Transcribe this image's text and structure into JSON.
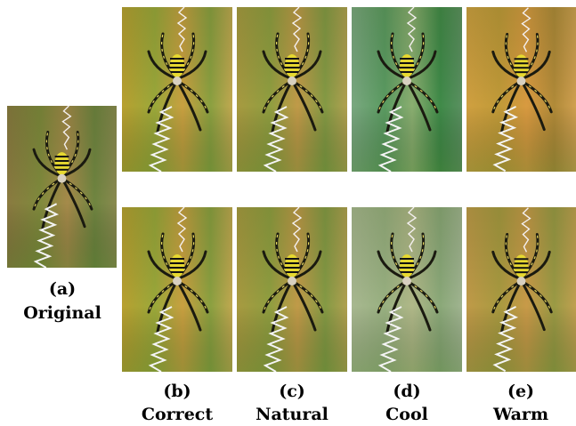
{
  "panels": [
    {
      "letter": "(a)",
      "name": "Original"
    },
    {
      "letter": "(b)",
      "name": "Correct"
    },
    {
      "letter": "(c)",
      "name": "Natural"
    },
    {
      "letter": "(d)",
      "name": "Cool"
    },
    {
      "letter": "(e)",
      "name": "Warm"
    }
  ]
}
